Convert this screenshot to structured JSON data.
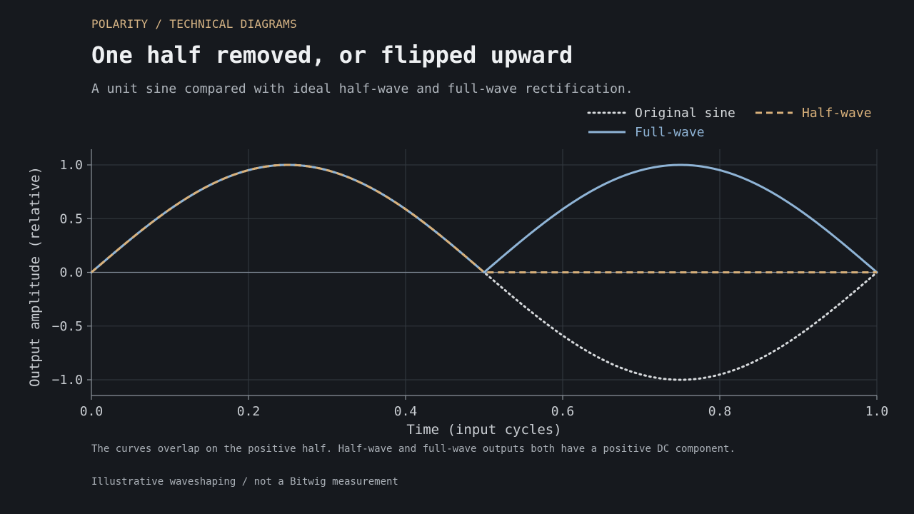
{
  "header": {
    "kicker": "POLARITY / TECHNICAL DIAGRAMS",
    "title": "One half removed, or flipped upward",
    "subtitle": "A unit sine compared with ideal half-wave and full-wave rectification."
  },
  "notes": {
    "caption": "The curves overlap on the positive half. Half-wave and full-wave outputs both have a positive DC component.",
    "footer": "Illustrative waveshaping / not a Bitwig measurement"
  },
  "colors": {
    "background": "#16191e",
    "grid": "#343a41",
    "axis": "#8b929a",
    "original": "#d6d9dc",
    "half_wave": "#d8b07a",
    "full_wave": "#8fb4d6"
  },
  "chart_data": {
    "type": "line",
    "xlabel": "Time (input cycles)",
    "ylabel": "Output amplitude (relative)",
    "xlim": [
      0.0,
      1.0
    ],
    "ylim": [
      -1.15,
      1.15
    ],
    "xticks": [
      {
        "v": 0.0,
        "label": "0.0"
      },
      {
        "v": 0.2,
        "label": "0.2"
      },
      {
        "v": 0.4,
        "label": "0.4"
      },
      {
        "v": 0.6,
        "label": "0.6"
      },
      {
        "v": 0.8,
        "label": "0.8"
      },
      {
        "v": 1.0,
        "label": "1.0"
      }
    ],
    "yticks": [
      {
        "v": 1.0,
        "label": "1.0"
      },
      {
        "v": 0.5,
        "label": "0.5"
      },
      {
        "v": 0.0,
        "label": "0.0"
      },
      {
        "v": -0.5,
        "label": "−0.5"
      },
      {
        "v": -1.0,
        "label": "−1.0"
      }
    ],
    "grid": true,
    "legend_position": "top-right",
    "x": [
      0.0,
      0.05,
      0.1,
      0.15,
      0.2,
      0.25,
      0.3,
      0.35,
      0.4,
      0.45,
      0.5,
      0.55,
      0.6,
      0.65,
      0.7,
      0.75,
      0.8,
      0.85,
      0.9,
      0.95,
      1.0
    ],
    "series": [
      {
        "name": "Original sine",
        "style": "dotted",
        "values": [
          0.0,
          0.309,
          0.588,
          0.809,
          0.951,
          1.0,
          0.951,
          0.809,
          0.588,
          0.309,
          0.0,
          -0.309,
          -0.588,
          -0.809,
          -0.951,
          -1.0,
          -0.951,
          -0.809,
          -0.588,
          -0.309,
          0.0
        ]
      },
      {
        "name": "Half-wave",
        "style": "dashed",
        "values": [
          0.0,
          0.309,
          0.588,
          0.809,
          0.951,
          1.0,
          0.951,
          0.809,
          0.588,
          0.309,
          0.0,
          0.0,
          0.0,
          0.0,
          0.0,
          0.0,
          0.0,
          0.0,
          0.0,
          0.0,
          0.0
        ]
      },
      {
        "name": "Full-wave",
        "style": "solid",
        "values": [
          0.0,
          0.309,
          0.588,
          0.809,
          0.951,
          1.0,
          0.951,
          0.809,
          0.588,
          0.309,
          0.0,
          0.309,
          0.588,
          0.809,
          0.951,
          1.0,
          0.951,
          0.809,
          0.588,
          0.309,
          0.0
        ]
      }
    ]
  }
}
